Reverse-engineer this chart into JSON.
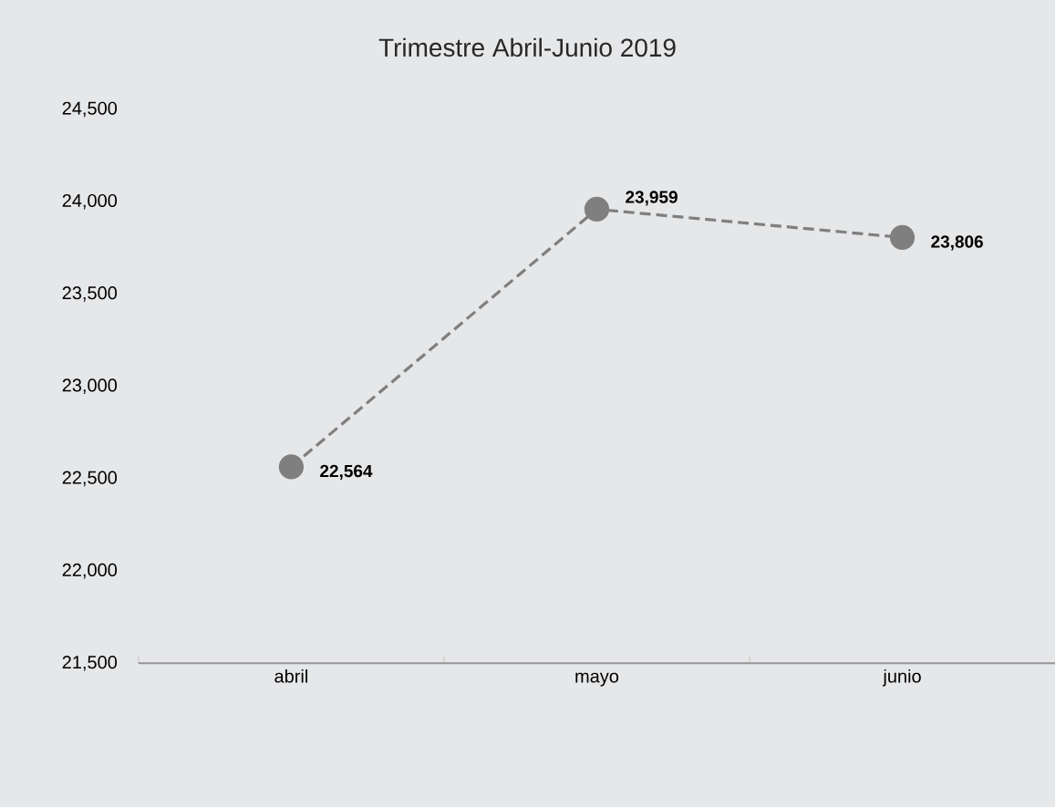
{
  "chart_data": {
    "type": "line",
    "title": "Trimestre Abril-Junio 2019",
    "categories": [
      "abril",
      "mayo",
      "junio"
    ],
    "series": [
      {
        "color": "#7f7f7f",
        "values": [
          22564,
          23959,
          23806
        ],
        "value_labels": [
          "22,564",
          "23,959",
          "23,806"
        ]
      }
    ],
    "ylim": [
      21500,
      24500
    ],
    "yticks": [
      {
        "value": 21500,
        "label": "21,500"
      },
      {
        "value": 22000,
        "label": "22,000"
      },
      {
        "value": 22500,
        "label": "22,500"
      },
      {
        "value": 23000,
        "label": "23,000"
      },
      {
        "value": 23500,
        "label": "23,500"
      },
      {
        "value": 24000,
        "label": "24,000"
      },
      {
        "value": 24500,
        "label": "24,500"
      }
    ],
    "grid": false,
    "marker": "circle",
    "line_style": "dashed"
  }
}
